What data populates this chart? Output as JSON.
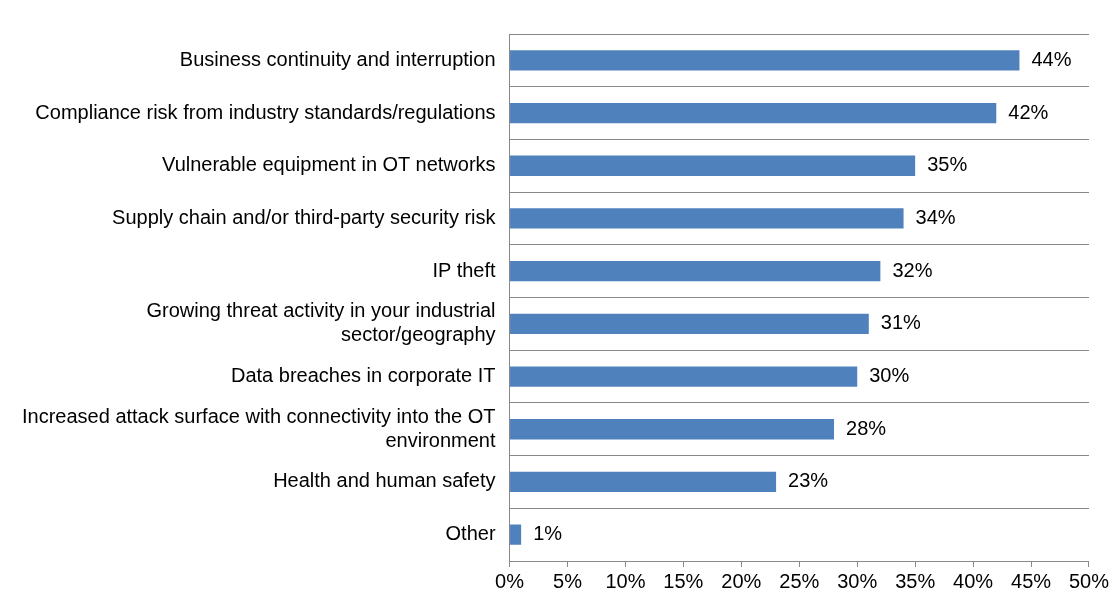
{
  "chart_data": {
    "type": "bar",
    "orientation": "horizontal",
    "categories": [
      "Business continuity and interruption",
      "Compliance risk from industry standards/regulations",
      "Vulnerable equipment in OT networks",
      "Supply chain and/or third-party security risk",
      "IP theft",
      "Growing threat activity in your industrial sector/geography",
      "Data breaches in corporate IT",
      "Increased attack surface with connectivity into the OT environment",
      "Health and human safety",
      "Other"
    ],
    "values": [
      44,
      42,
      35,
      34,
      32,
      31,
      30,
      28,
      23,
      1
    ],
    "value_labels": [
      "44%",
      "42%",
      "35%",
      "34%",
      "32%",
      "31%",
      "30%",
      "28%",
      "23%",
      "1%"
    ],
    "color": "#4f81bd",
    "xlim": [
      0,
      50
    ],
    "xticks": [
      {
        "value": 0,
        "label": "0%"
      },
      {
        "value": 5,
        "label": "5%"
      },
      {
        "value": 10,
        "label": "10%"
      },
      {
        "value": 15,
        "label": "15%"
      },
      {
        "value": 20,
        "label": "20%"
      },
      {
        "value": 25,
        "label": "25%"
      },
      {
        "value": 30,
        "label": "30%"
      },
      {
        "value": 35,
        "label": "35%"
      },
      {
        "value": 40,
        "label": "40%"
      },
      {
        "value": 45,
        "label": "45%"
      },
      {
        "value": 50,
        "label": "50%"
      }
    ],
    "grid": "y",
    "legend": false
  }
}
